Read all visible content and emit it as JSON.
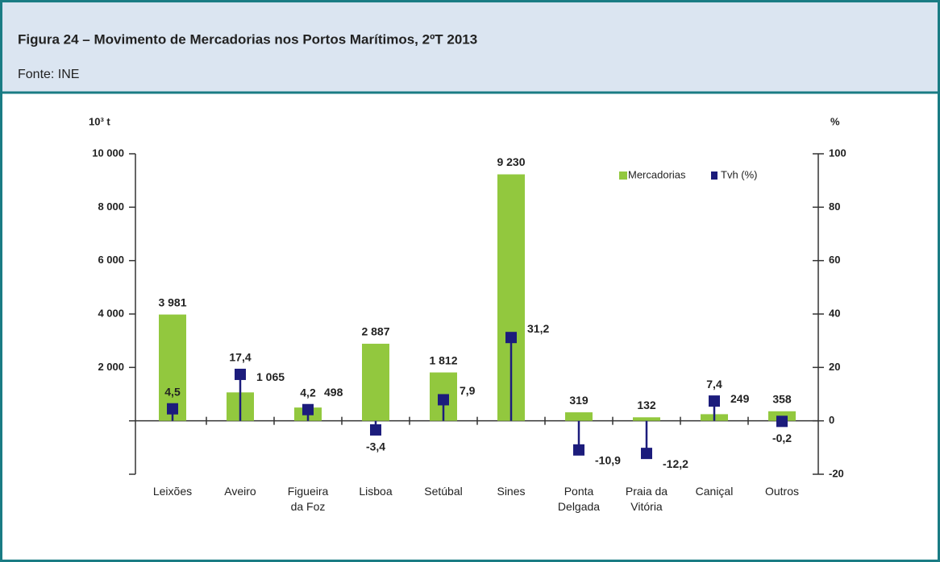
{
  "header": {
    "title": "Figura 24 – Movimento de Mercadorias nos Portos Marítimos, 2ºT 2013",
    "source": "Fonte: INE"
  },
  "chart_data": {
    "type": "bar",
    "y_label": "10³ t",
    "y2_label": "%",
    "categories": [
      "Leixões",
      "Aveiro",
      "Figueira\nda Foz",
      "Lisboa",
      "Setúbal",
      "Sines",
      "Ponta\nDelgada",
      "Praia da\nVitória",
      "Caniçal",
      "Outros"
    ],
    "series": [
      {
        "name": "Mercadorias",
        "color": "#92c83e",
        "label_color": "#76a82a",
        "values": [
          3981,
          1065,
          498,
          2887,
          1812,
          9230,
          319,
          132,
          249,
          358
        ],
        "value_labels": [
          "3 981",
          "1 065",
          "498",
          "2 887",
          "1 812",
          "9 230",
          "319",
          "132",
          "249",
          "358"
        ]
      },
      {
        "name": "Tvh (%)",
        "color": "#1c1c7c",
        "axis": "y2",
        "values": [
          4.5,
          17.4,
          4.2,
          -3.4,
          7.9,
          31.2,
          -10.9,
          -12.2,
          7.4,
          -0.2
        ],
        "value_labels": [
          "4,5",
          "17,4",
          "4,2",
          "-3,4",
          "7,9",
          "31,2",
          "-10,9",
          "-12,2",
          "7,4",
          "-0,2"
        ]
      }
    ],
    "ylim": [
      -2000,
      10000
    ],
    "yticks": [
      {
        "value": 2000,
        "label": "2 000"
      },
      {
        "value": 4000,
        "label": "4 000"
      },
      {
        "value": 6000,
        "label": "6 000"
      },
      {
        "value": 8000,
        "label": "8 000"
      },
      {
        "value": 10000,
        "label": "10 000"
      }
    ],
    "y2lim": [
      -20,
      100
    ],
    "y2ticks": [
      -20,
      0,
      20,
      40,
      60,
      80,
      100
    ],
    "grid": false,
    "legend": "top-right"
  }
}
